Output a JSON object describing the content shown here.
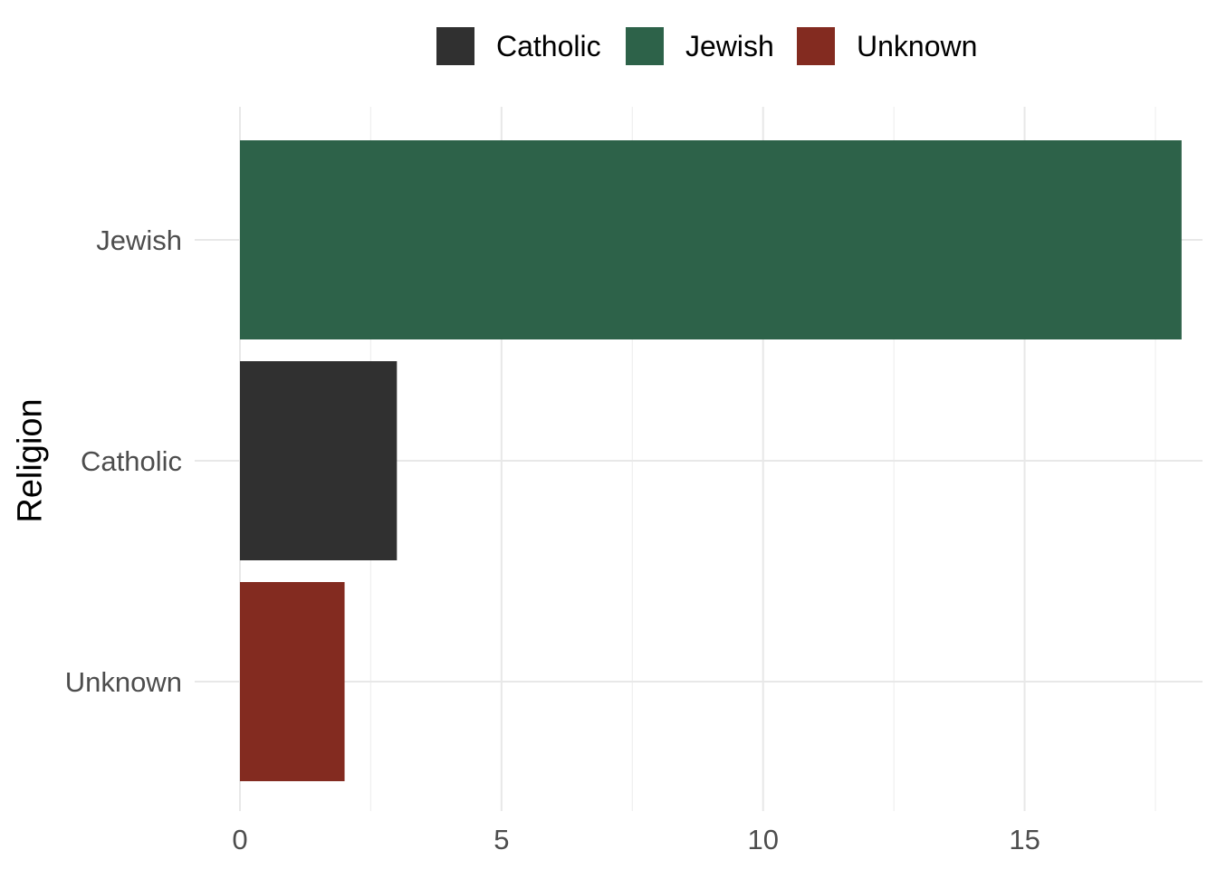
{
  "chart_data": {
    "type": "bar",
    "orientation": "horizontal",
    "categories": [
      "Jewish",
      "Catholic",
      "Unknown"
    ],
    "values": [
      18,
      3,
      2
    ],
    "colors": [
      "#2d6249",
      "#303030",
      "#832b20"
    ],
    "xlabel": "",
    "ylabel": "Religion",
    "xlim": [
      0,
      18.4
    ],
    "xticks": [
      0,
      5,
      10,
      15
    ],
    "xtick_labels": [
      "0",
      "5",
      "10",
      "15"
    ],
    "grid": true,
    "legend": {
      "position": "top",
      "entries": [
        {
          "label": "Catholic",
          "color": "#303030"
        },
        {
          "label": "Jewish",
          "color": "#2d6249"
        },
        {
          "label": "Unknown",
          "color": "#832b20"
        }
      ]
    }
  }
}
